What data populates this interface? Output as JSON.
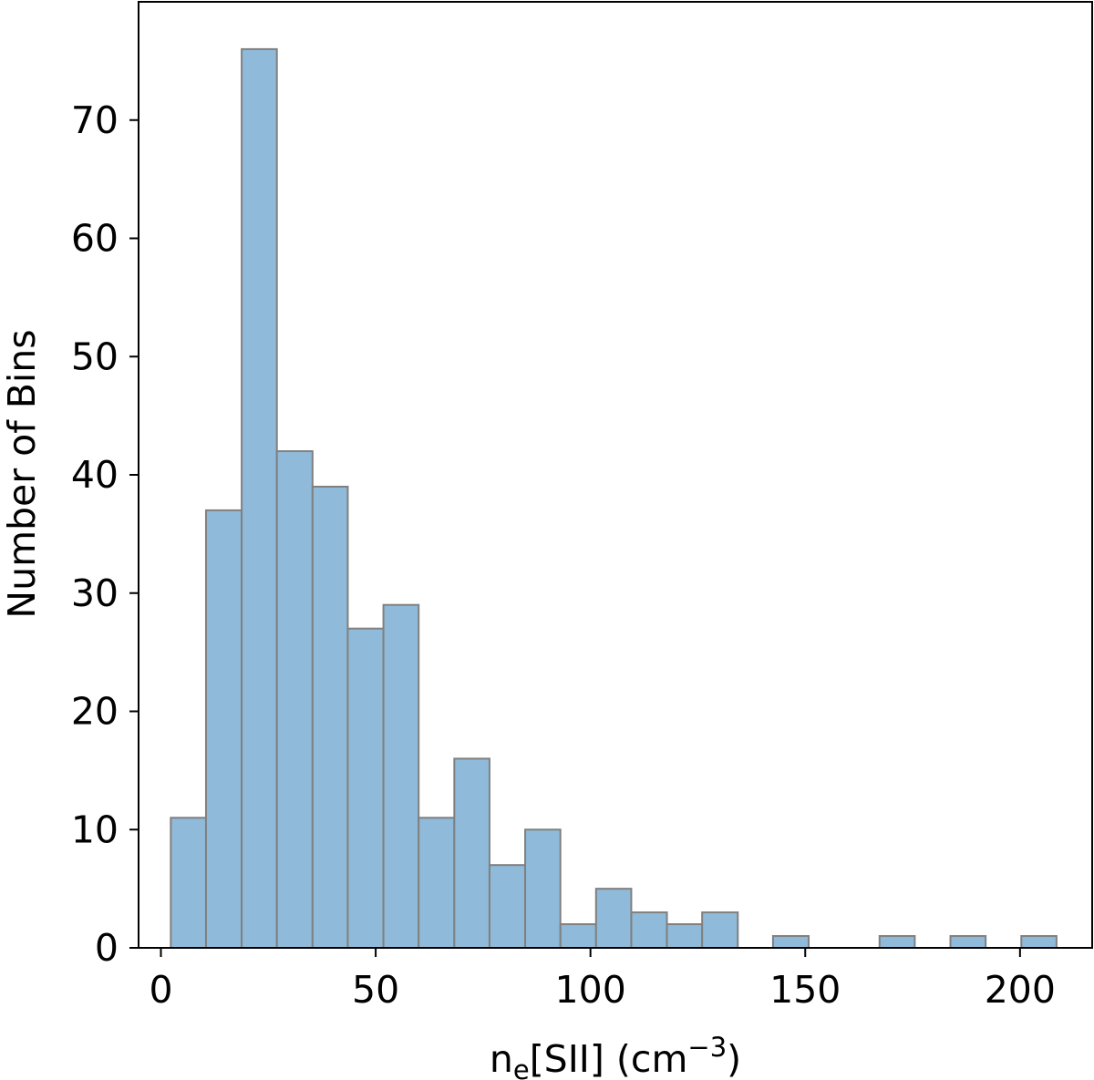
{
  "chart_data": {
    "type": "bar",
    "xlabel_main": "n",
    "xlabel_sub": "e",
    "xlabel_mid": "[SII] (cm",
    "xlabel_sup": "−3",
    "xlabel_end": ")",
    "ylabel": "Number of Bins",
    "xlim": [
      -5.2,
      216.8
    ],
    "ylim": [
      0,
      80
    ],
    "xticks": [
      0,
      50,
      100,
      150,
      200
    ],
    "yticks": [
      0,
      10,
      20,
      30,
      40,
      50,
      60,
      70
    ],
    "bin_edges": [
      2.3,
      10.5,
      18.8,
      27.0,
      35.3,
      43.5,
      51.8,
      60.0,
      68.3,
      76.5,
      84.8,
      93.0,
      101.3,
      109.5,
      117.8,
      126.0,
      134.3,
      142.5,
      150.8,
      159.0,
      167.3,
      175.5,
      183.8,
      192.0,
      200.3,
      208.5
    ],
    "counts": [
      11,
      37,
      76,
      42,
      39,
      27,
      29,
      11,
      16,
      7,
      10,
      2,
      5,
      3,
      2,
      3,
      0,
      1,
      0,
      0,
      1,
      0,
      1,
      0,
      1
    ],
    "bar_fill": "#8fbad9",
    "bar_edge": "#808080",
    "grid": false
  }
}
